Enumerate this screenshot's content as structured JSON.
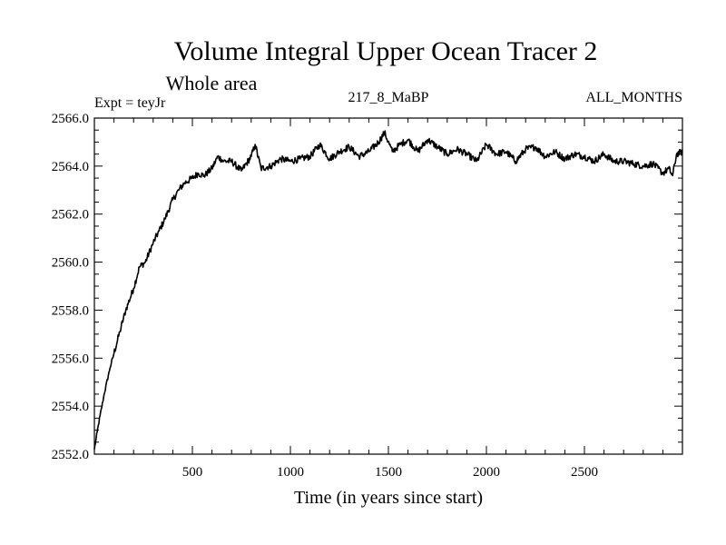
{
  "header": {
    "title": "Volume Integral Upper Ocean Tracer 2",
    "subtitle": "Whole area",
    "expt_label": "Expt = teyJr",
    "center_label": "217_8_MaBP",
    "right_label": "ALL_MONTHS"
  },
  "chart_data": {
    "type": "line",
    "title": "Volume Integral Upper Ocean Tracer 2",
    "subtitle": "Whole area",
    "xlabel": "Time (in years since start)",
    "ylabel": "",
    "xlim": [
      0,
      3000
    ],
    "ylim": [
      2552.0,
      2566.0
    ],
    "xticks": [
      500,
      1000,
      1500,
      2000,
      2500
    ],
    "xtick_labels": [
      "500",
      "1000",
      "1500",
      "2000",
      "2500"
    ],
    "yticks": [
      2552.0,
      2554.0,
      2556.0,
      2558.0,
      2560.0,
      2562.0,
      2564.0,
      2566.0
    ],
    "ytick_labels": [
      "2552.0",
      "2554.0",
      "2556.0",
      "2558.0",
      "2560.0",
      "2562.0",
      "2564.0",
      "2566.0"
    ],
    "series": [
      {
        "name": "Tracer 2",
        "color": "#000000",
        "x": [
          0,
          20,
          50,
          80,
          100,
          130,
          160,
          200,
          230,
          260,
          300,
          330,
          360,
          400,
          430,
          460,
          500,
          530,
          560,
          600,
          630,
          660,
          700,
          750,
          800,
          820,
          850,
          900,
          950,
          1000,
          1050,
          1100,
          1150,
          1200,
          1250,
          1300,
          1350,
          1400,
          1450,
          1480,
          1520,
          1560,
          1600,
          1650,
          1700,
          1750,
          1800,
          1850,
          1900,
          1950,
          2000,
          2050,
          2100,
          2150,
          2200,
          2250,
          2300,
          2350,
          2400,
          2450,
          2500,
          2550,
          2600,
          2650,
          2700,
          2750,
          2800,
          2850,
          2900,
          2930,
          2950,
          2970,
          3000
        ],
        "y": [
          2552.2,
          2553.2,
          2554.5,
          2555.6,
          2556.2,
          2557.1,
          2558.0,
          2558.9,
          2559.8,
          2560.0,
          2560.8,
          2561.3,
          2561.8,
          2562.6,
          2563.0,
          2563.3,
          2563.5,
          2563.7,
          2563.6,
          2563.9,
          2564.4,
          2564.2,
          2564.2,
          2563.8,
          2564.4,
          2564.9,
          2563.9,
          2564.0,
          2564.3,
          2564.2,
          2564.3,
          2564.4,
          2564.9,
          2564.3,
          2564.6,
          2564.8,
          2564.4,
          2564.6,
          2565.0,
          2565.4,
          2564.6,
          2564.9,
          2565.1,
          2564.6,
          2565.1,
          2564.8,
          2564.5,
          2564.7,
          2564.5,
          2564.2,
          2564.9,
          2564.5,
          2564.6,
          2564.2,
          2564.7,
          2564.8,
          2564.4,
          2564.6,
          2564.3,
          2564.5,
          2564.4,
          2564.2,
          2564.5,
          2564.2,
          2564.2,
          2564.1,
          2564.0,
          2564.1,
          2563.7,
          2563.9,
          2563.6,
          2564.5,
          2564.6
        ]
      }
    ]
  }
}
